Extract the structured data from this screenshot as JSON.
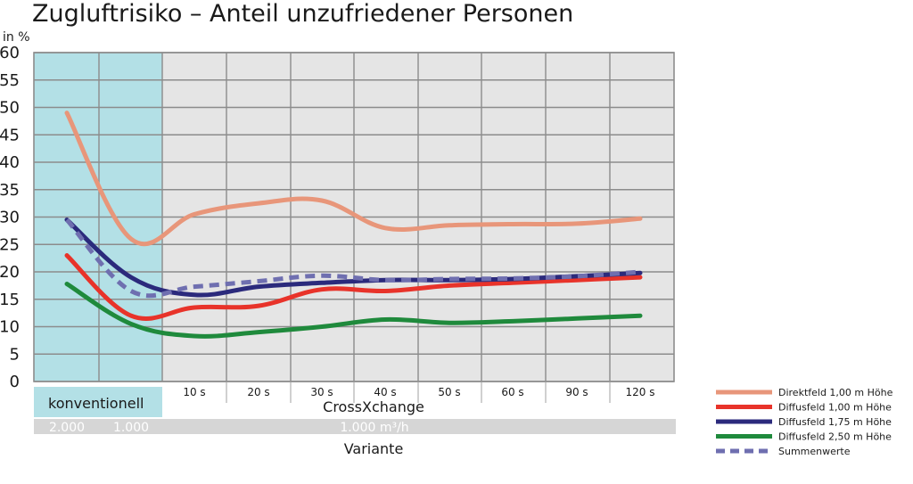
{
  "chart_title": "Zugluftrisiko – Anteil unzufriedener Personen",
  "y_unit_label": "in %",
  "chart_data": {
    "type": "line",
    "title": "Zugluftrisiko – Anteil unzufriedener Personen",
    "ylabel": "in %",
    "xlabel": "Variante",
    "ylim": [
      0,
      60
    ],
    "y_ticks": [
      0,
      5,
      10,
      15,
      20,
      25,
      30,
      35,
      40,
      45,
      50,
      55,
      60
    ],
    "grid": true,
    "x_positions": [
      "2.000",
      "1.000",
      "10 s",
      "20 s",
      "30 s",
      "40 s",
      "50 s",
      "60 s",
      "90 s",
      "120 s"
    ],
    "x_tick_labels": [
      "10 s",
      "20 s",
      "30 s",
      "40 s",
      "50 s",
      "60 s",
      "90 s",
      "120 s"
    ],
    "groups": [
      {
        "name": "konventionell",
        "flow_labels": [
          "2.000",
          "1.000"
        ],
        "color": "#b3e0e6"
      },
      {
        "name": "CrossXchange",
        "flow_labels": [
          "1.000 m³/h"
        ],
        "color": "#e5e5e5"
      }
    ],
    "legend_position": "bottom-right",
    "series": [
      {
        "name": "Direktfeld 1,00 m Höhe",
        "color": "#e8967a",
        "dash": false,
        "values": [
          49,
          26,
          30.5,
          32.5,
          33,
          28,
          28.5,
          28.7,
          28.8,
          29.7
        ]
      },
      {
        "name": "Diffusfeld 1,00 m Höhe",
        "color": "#e8332a",
        "dash": false,
        "values": [
          23,
          12,
          13.5,
          13.8,
          16.8,
          16.5,
          17.5,
          18,
          18.5,
          19
        ]
      },
      {
        "name": "Diffusfeld 1,75 m Höhe",
        "color": "#2b2a7c",
        "dash": false,
        "values": [
          29.5,
          19,
          15.8,
          17.3,
          18,
          18.5,
          18.5,
          18.7,
          19.2,
          19.8
        ]
      },
      {
        "name": "Diffusfeld 2,50 m Höhe",
        "color": "#1f8a3c",
        "dash": false,
        "values": [
          17.8,
          10.5,
          8.3,
          9,
          10,
          11.3,
          10.7,
          11,
          11.5,
          12
        ]
      },
      {
        "name": "Summenwerte",
        "color": "#6f6fb0",
        "dash": true,
        "values": [
          29.5,
          16.5,
          17.3,
          18.3,
          19.3,
          18.5,
          18.7,
          18.8,
          19.2,
          20
        ]
      }
    ]
  }
}
